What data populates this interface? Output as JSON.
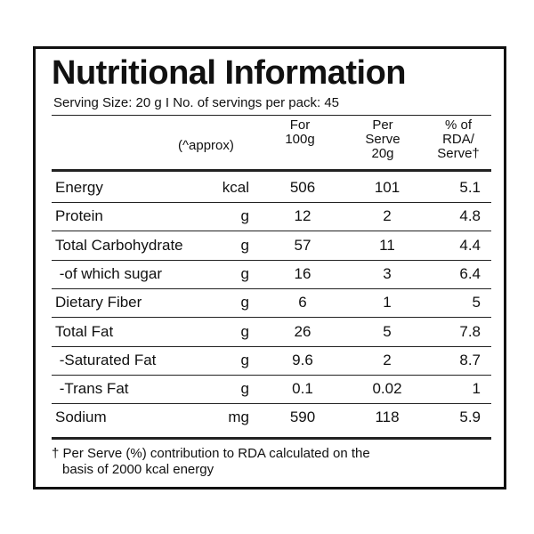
{
  "title": "Nutritional Information",
  "serving_line": "Serving Size: 20 g  I  No. of servings per pack: 45",
  "headers": {
    "approx": "(^approx)",
    "per100_l1": "For",
    "per100_l2": "100g",
    "serve_l1": "Per",
    "serve_l2": "Serve",
    "serve_l3": "20g",
    "rda_l1": "% of",
    "rda_l2": "RDA/",
    "rda_l3": "Serve†"
  },
  "rows": [
    {
      "name": "Energy",
      "unit": "kcal",
      "per100": "506",
      "serve": "101",
      "rda": "5.1"
    },
    {
      "name": "Protein",
      "unit": "g",
      "per100": "12",
      "serve": "2",
      "rda": "4.8"
    },
    {
      "name": "Total Carbohydrate",
      "unit": "g",
      "per100": "57",
      "serve": "11",
      "rda": "4.4"
    },
    {
      "name": " -of which sugar",
      "unit": "g",
      "per100": "16",
      "serve": "3",
      "rda": "6.4"
    },
    {
      "name": "Dietary Fiber",
      "unit": "g",
      "per100": "6",
      "serve": "1",
      "rda": "5"
    },
    {
      "name": "Total Fat",
      "unit": "g",
      "per100": "26",
      "serve": "5",
      "rda": "7.8"
    },
    {
      "name": " -Saturated Fat",
      "unit": "g",
      "per100": "9.6",
      "serve": "2",
      "rda": "8.7"
    },
    {
      "name": " -Trans Fat",
      "unit": "g",
      "per100": "0.1",
      "serve": "0.02",
      "rda": "1"
    },
    {
      "name": "Sodium",
      "unit": "mg",
      "per100": "590",
      "serve": "118",
      "rda": "5.9"
    }
  ],
  "footnote_l1": "† Per Serve (%) contribution to RDA calculated on the",
  "footnote_l2": "basis of 2000 kcal energy"
}
